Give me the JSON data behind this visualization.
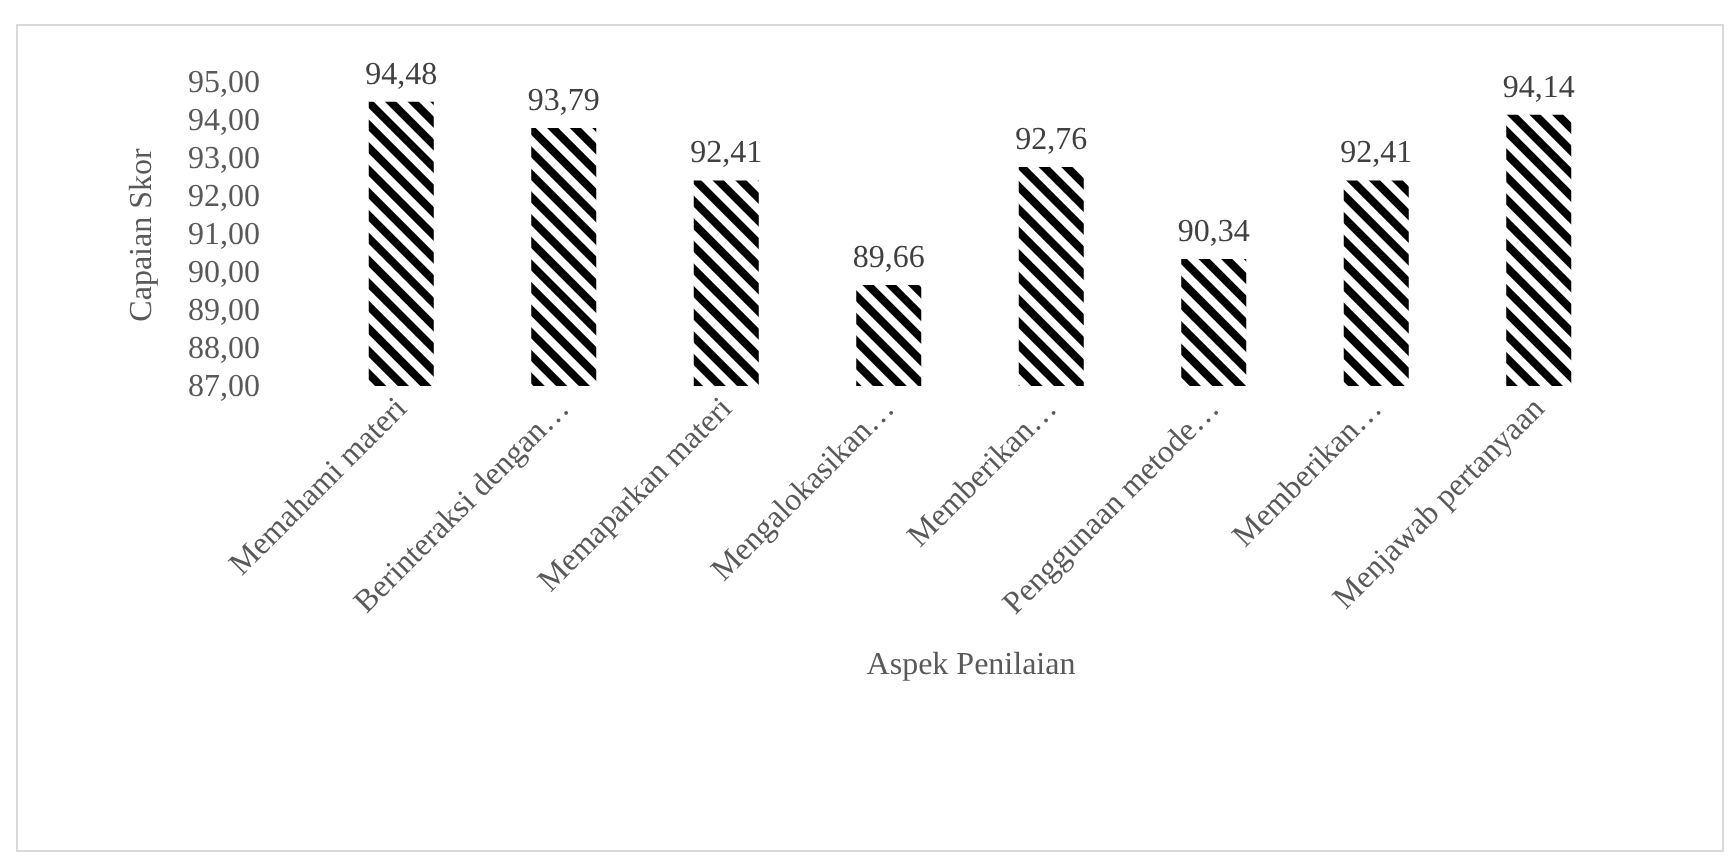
{
  "chart_data": {
    "type": "bar",
    "xlabel": "Aspek Penilaian",
    "ylabel": "Capaian Skor",
    "categories": [
      "Memahami materi",
      "Berinteraksi dengan…",
      "Memaparkan materi",
      "Mengalokasikan…",
      "Memberikan…",
      "Penggunaan metode…",
      "Memberikan…",
      "Menjawab pertanyaan"
    ],
    "values": [
      94.48,
      93.79,
      92.41,
      89.66,
      92.76,
      90.34,
      92.41,
      94.14
    ],
    "value_labels": [
      "94,48",
      "93,79",
      "92,41",
      "89,66",
      "92,76",
      "90,34",
      "92,41",
      "94,14"
    ],
    "color": "#000000",
    "ylim": [
      87,
      95
    ],
    "yticks": [
      {
        "value": 87,
        "label": "87,00"
      },
      {
        "value": 88,
        "label": "88,00"
      },
      {
        "value": 89,
        "label": "89,00"
      },
      {
        "value": 90,
        "label": "90,00"
      },
      {
        "value": 91,
        "label": "91,00"
      },
      {
        "value": 92,
        "label": "92,00"
      },
      {
        "value": 93,
        "label": "93,00"
      },
      {
        "value": 94,
        "label": "94,00"
      },
      {
        "value": 95,
        "label": "95,00"
      }
    ],
    "grid": false
  }
}
